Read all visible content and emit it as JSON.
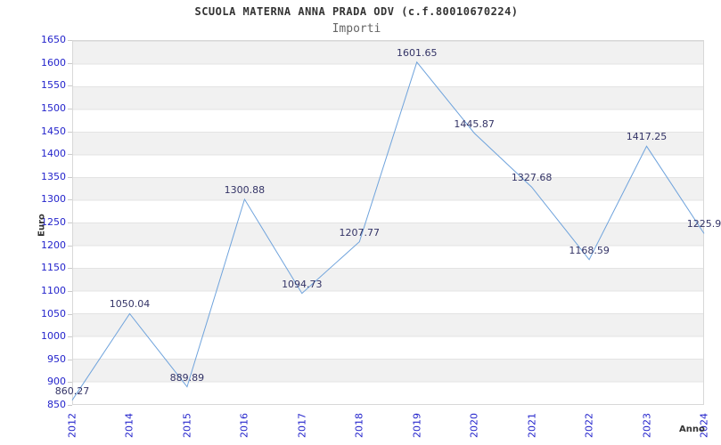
{
  "header": {
    "title": "SCUOLA MATERNA ANNA PRADA ODV (c.f.80010670224)",
    "subtitle": "Importi"
  },
  "chart_data": {
    "type": "line",
    "title": "SCUOLA MATERNA ANNA PRADA ODV (c.f.80010670224)",
    "subtitle": "Importi",
    "xlabel": "Anno",
    "ylabel": "Euro",
    "categories": [
      "2012",
      "2014",
      "2015",
      "2016",
      "2017",
      "2018",
      "2019",
      "2020",
      "2021",
      "2022",
      "2023",
      "2024"
    ],
    "values": [
      860.27,
      1050.04,
      889.89,
      1300.88,
      1094.73,
      1207.77,
      1601.65,
      1445.87,
      1327.68,
      1168.59,
      1417.25,
      1225.9
    ],
    "point_labels": [
      "860.27",
      "1050.04",
      "889.89",
      "1300.88",
      "1094.73",
      "1207.77",
      "1601.65",
      "1445.87",
      "1327.68",
      "1168.59",
      "1417.25",
      "1225.9"
    ],
    "ylim": [
      850,
      1650
    ],
    "ytick_step": 50,
    "grid": "horizontal-bands-alternating",
    "legend": "none",
    "colors": {
      "line": "#6fa3dc",
      "tick_label": "#2424cc",
      "point_label": "#333366",
      "band": "#f1f1f1",
      "gridline": "#e3e3e3",
      "plot_border": "#d8d8d8",
      "title": "#333333",
      "subtitle": "#666666",
      "axis_title": "#333333"
    }
  }
}
